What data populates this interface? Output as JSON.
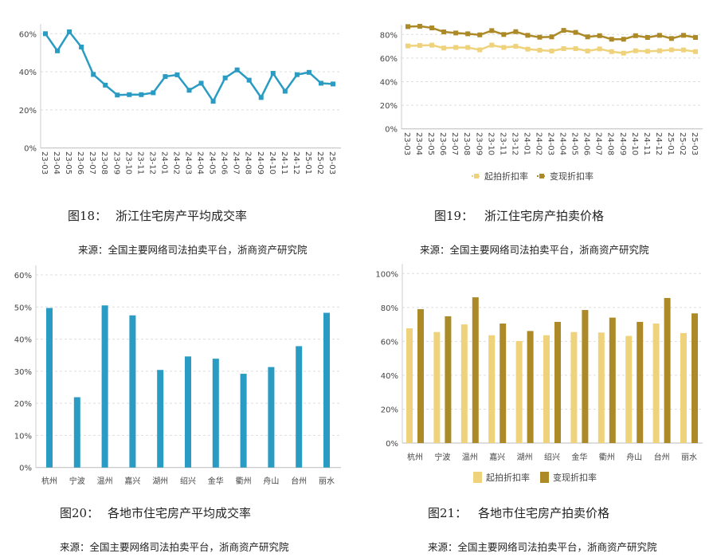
{
  "figures": [
    {
      "number": "图18：",
      "title": "浙江住宅房产平均成交率",
      "source": "来源：全国主要网络司法拍卖平台，浙商资产研究院"
    },
    {
      "number": "图19：",
      "title": "浙江住宅房产拍卖价格",
      "source": "来源：全国主要网络司法拍卖平台，浙商资产研究院"
    },
    {
      "number": "图20：",
      "title": "各地市住宅房产平均成交率",
      "source": "来源：全国主要网络司法拍卖平台，浙商资产研究院"
    },
    {
      "number": "图21：",
      "title": "各地市住宅房产拍卖价格",
      "source": "来源：全国主要网络司法拍卖平台，浙商资产研究院"
    }
  ],
  "colors": {
    "blue": "#2a9bc2",
    "light_gold": "#efd27c",
    "dark_gold": "#ad8a28"
  },
  "chart_data": [
    {
      "type": "line",
      "categories": [
        "23-03",
        "23-04",
        "23-05",
        "23-06",
        "23-07",
        "23-08",
        "23-09",
        "23-10",
        "23-11",
        "23-12",
        "24-01",
        "24-02",
        "24-03",
        "24-04",
        "24-05",
        "24-06",
        "24-07",
        "24-08",
        "24-09",
        "24-10",
        "24-11",
        "24-12",
        "25-01",
        "25-02",
        "25-03"
      ],
      "series": [
        {
          "values": [
            60,
            51,
            61,
            53,
            38.6,
            33,
            27.8,
            28,
            28,
            29,
            37.5,
            38.4,
            30.3,
            34,
            24.5,
            36.8,
            41,
            35.6,
            26.5,
            39.2,
            29.8,
            38.5,
            39.7,
            34,
            33.6
          ],
          "color": "#2a9bc2"
        }
      ],
      "yticks": [
        "0%",
        "20%",
        "40%",
        "60%"
      ],
      "ylim": [
        0,
        60
      ],
      "grid": true
    },
    {
      "type": "line",
      "categories": [
        "23-03",
        "23-04",
        "23-05",
        "23-06",
        "23-07",
        "23-08",
        "23-09",
        "23-10",
        "23-11",
        "23-12",
        "24-01",
        "24-02",
        "24-03",
        "24-04",
        "24-05",
        "24-06",
        "24-07",
        "24-08",
        "24-09",
        "24-10",
        "24-11",
        "24-12",
        "25-01",
        "25-02",
        "25-03"
      ],
      "series": [
        {
          "name": "起拍折扣率",
          "color": "#efd27c",
          "values": [
            70.3,
            70.7,
            71,
            68.5,
            69,
            69,
            67,
            71,
            69,
            70,
            67.6,
            66.7,
            66,
            68,
            68,
            66,
            67.8,
            65.5,
            64.2,
            66.2,
            65.8,
            66.2,
            67,
            66.9,
            65.5
          ]
        },
        {
          "name": "变现折扣率",
          "color": "#ad8a28",
          "values": [
            86.7,
            87,
            85.6,
            82.2,
            81.3,
            80.6,
            79.7,
            83.3,
            80,
            82.4,
            79.3,
            77.7,
            78,
            83.5,
            81.8,
            78,
            79,
            76,
            76,
            79,
            77.5,
            79.3,
            76.6,
            79.3,
            77.5
          ]
        }
      ],
      "yticks": [
        "0%",
        "20%",
        "40%",
        "60%",
        "80%"
      ],
      "ylim": [
        0,
        80
      ],
      "grid": true,
      "legend": "bottom"
    },
    {
      "type": "bar",
      "categories": [
        "杭州",
        "宁波",
        "温州",
        "嘉兴",
        "湖州",
        "绍兴",
        "金华",
        "衢州",
        "舟山",
        "台州",
        "丽水"
      ],
      "series": [
        {
          "values": [
            49.7,
            21.9,
            50.5,
            47.4,
            30.4,
            34.6,
            33.9,
            29.2,
            31.3,
            37.8,
            48.2
          ],
          "color": "#2a9bc2"
        }
      ],
      "yticks": [
        "0%",
        "10%",
        "20%",
        "30%",
        "40%",
        "50%",
        "60%"
      ],
      "ylim": [
        0,
        60
      ],
      "grid": true
    },
    {
      "type": "bar",
      "categories": [
        "杭州",
        "宁波",
        "温州",
        "嘉兴",
        "湖州",
        "绍兴",
        "金华",
        "衢州",
        "舟山",
        "台州",
        "丽水"
      ],
      "series": [
        {
          "name": "起拍折扣率",
          "color": "#efd27c",
          "values": [
            67.7,
            65.5,
            70,
            63.6,
            60.2,
            63.6,
            65.5,
            65.2,
            63.2,
            70.5,
            64.9
          ]
        },
        {
          "name": "变现折扣率",
          "color": "#ad8a28",
          "values": [
            79,
            74.8,
            86,
            70.5,
            66.1,
            71.5,
            78.5,
            74,
            71.5,
            85.6,
            76.5
          ]
        }
      ],
      "yticks": [
        "0%",
        "20%",
        "40%",
        "60%",
        "80%",
        "100%"
      ],
      "ylim": [
        0,
        100
      ],
      "grid": true,
      "legend": "bottom"
    }
  ]
}
